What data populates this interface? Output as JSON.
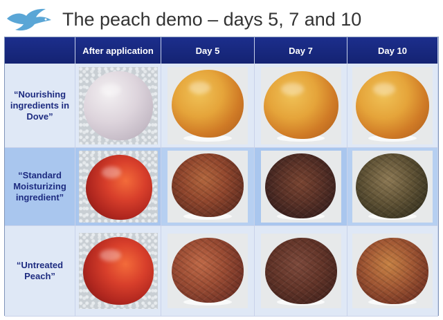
{
  "slide": {
    "title": "The peach demo – days 5, 7 and 10",
    "logo_icon": "dove-bird-icon"
  },
  "table": {
    "columns": [
      "",
      "After application",
      "Day 5",
      "Day 7",
      "Day 10"
    ],
    "rows": [
      {
        "label": "“Nourishing ingredients in Dove”"
      },
      {
        "label": "“Standard Moisturizing ingredient”"
      },
      {
        "label": "“Untreated Peach”"
      }
    ]
  },
  "colors": {
    "header_bg": "#1c2e8c",
    "row_label_text": "#1d2b80",
    "highlight_row": "#a9c6ee",
    "logo": "#5aa6d6"
  }
}
